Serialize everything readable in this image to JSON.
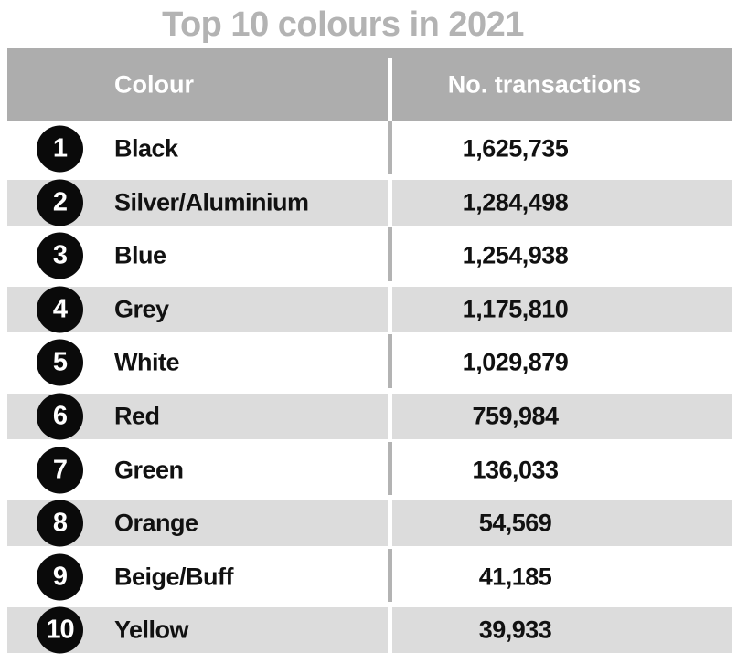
{
  "title": "Top 10 colours in 2021",
  "table": {
    "columns": [
      "Colour",
      "No. transactions"
    ],
    "rows": [
      {
        "rank": "1",
        "colour": "Black",
        "transactions": "1,625,735"
      },
      {
        "rank": "2",
        "colour": "Silver/Aluminium",
        "transactions": "1,284,498"
      },
      {
        "rank": "3",
        "colour": "Blue",
        "transactions": "1,254,938"
      },
      {
        "rank": "4",
        "colour": "Grey",
        "transactions": "1,175,810"
      },
      {
        "rank": "5",
        "colour": "White",
        "transactions": "1,029,879"
      },
      {
        "rank": "6",
        "colour": "Red",
        "transactions": "759,984"
      },
      {
        "rank": "7",
        "colour": "Green",
        "transactions": "136,033"
      },
      {
        "rank": "8",
        "colour": "Orange",
        "transactions": "54,569"
      },
      {
        "rank": "9",
        "colour": "Beige/Buff",
        "transactions": "41,185"
      },
      {
        "rank": "10",
        "colour": "Yellow",
        "transactions": "39,933"
      }
    ]
  },
  "colors": {
    "title_text": "#b3b3b3",
    "header_background": "#adadad",
    "header_text": "#ffffff",
    "alt_row_band": "#dcdcdc",
    "row_text": "#111111",
    "rank_badge_background": "#0a0a0a",
    "rank_badge_text": "#ffffff",
    "divider_on_white_row": "#b3b3b3",
    "divider_on_grey_row": "#ffffff"
  },
  "chart_data": {
    "type": "table",
    "title": "Top 10 colours in 2021",
    "columns": [
      "Colour",
      "No. transactions"
    ],
    "categories": [
      "Black",
      "Silver/Aluminium",
      "Blue",
      "Grey",
      "White",
      "Red",
      "Green",
      "Orange",
      "Beige/Buff",
      "Yellow"
    ],
    "values": [
      1625735,
      1284498,
      1254938,
      1175810,
      1029879,
      759984,
      136033,
      54569,
      41185,
      39933
    ],
    "ranks": [
      1,
      2,
      3,
      4,
      5,
      6,
      7,
      8,
      9,
      10
    ],
    "legend_position": "none",
    "grid": false
  }
}
